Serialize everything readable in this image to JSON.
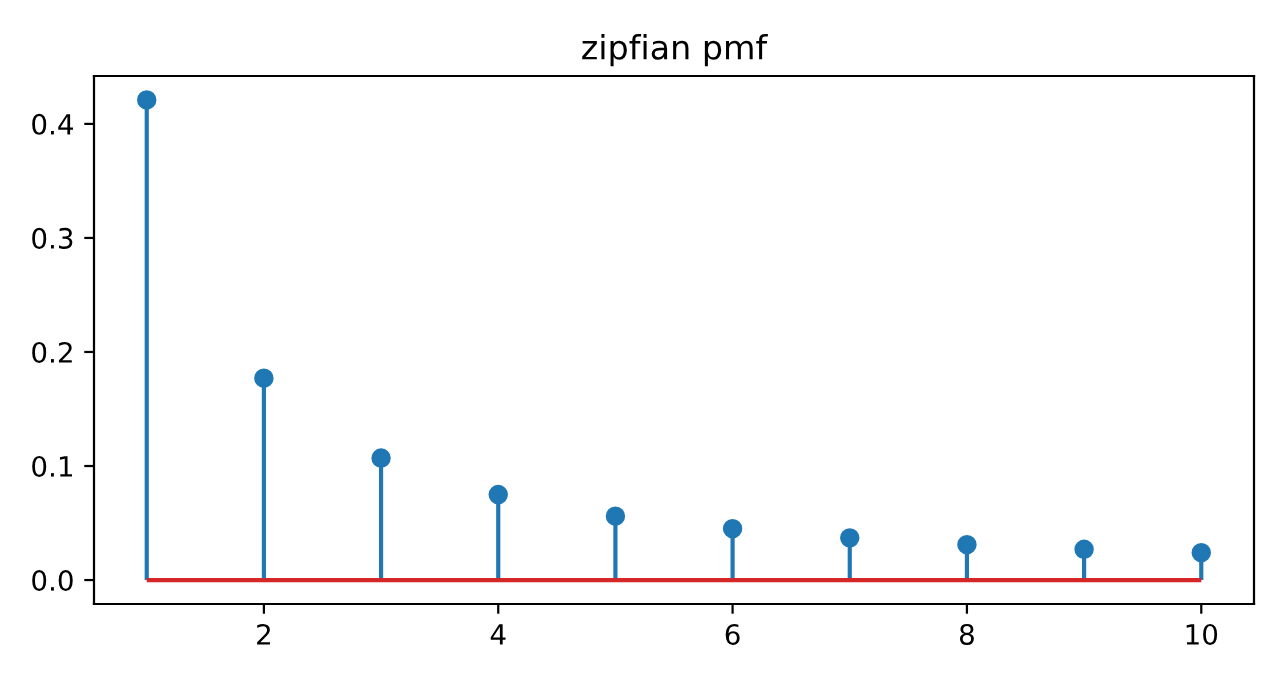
{
  "chart_data": {
    "type": "lollipop",
    "title": "zipfian pmf",
    "x": [
      1,
      2,
      3,
      4,
      5,
      6,
      7,
      8,
      9,
      10
    ],
    "series": [
      {
        "color": "#1f77b4",
        "values": [
          0.421,
          0.177,
          0.107,
          0.075,
          0.056,
          0.045,
          0.037,
          0.031,
          0.027,
          0.024
        ]
      }
    ],
    "xlim": [
      0.55,
      10.45
    ],
    "xticks": [
      2,
      4,
      6,
      8,
      10
    ],
    "ylim": [
      -0.021,
      0.442
    ],
    "yticks": [
      {
        "value": 0,
        "label": "0.0"
      },
      {
        "value": 0.1,
        "label": "0.1"
      },
      {
        "value": 0.2,
        "label": "0.2"
      },
      {
        "value": 0.3,
        "label": "0.3"
      },
      {
        "value": 0.4,
        "label": "0.4"
      }
    ],
    "ref_lines": [
      {
        "axis": "y",
        "value": 0,
        "color": "#d62728"
      }
    ],
    "marker": "circle",
    "grid": false
  }
}
